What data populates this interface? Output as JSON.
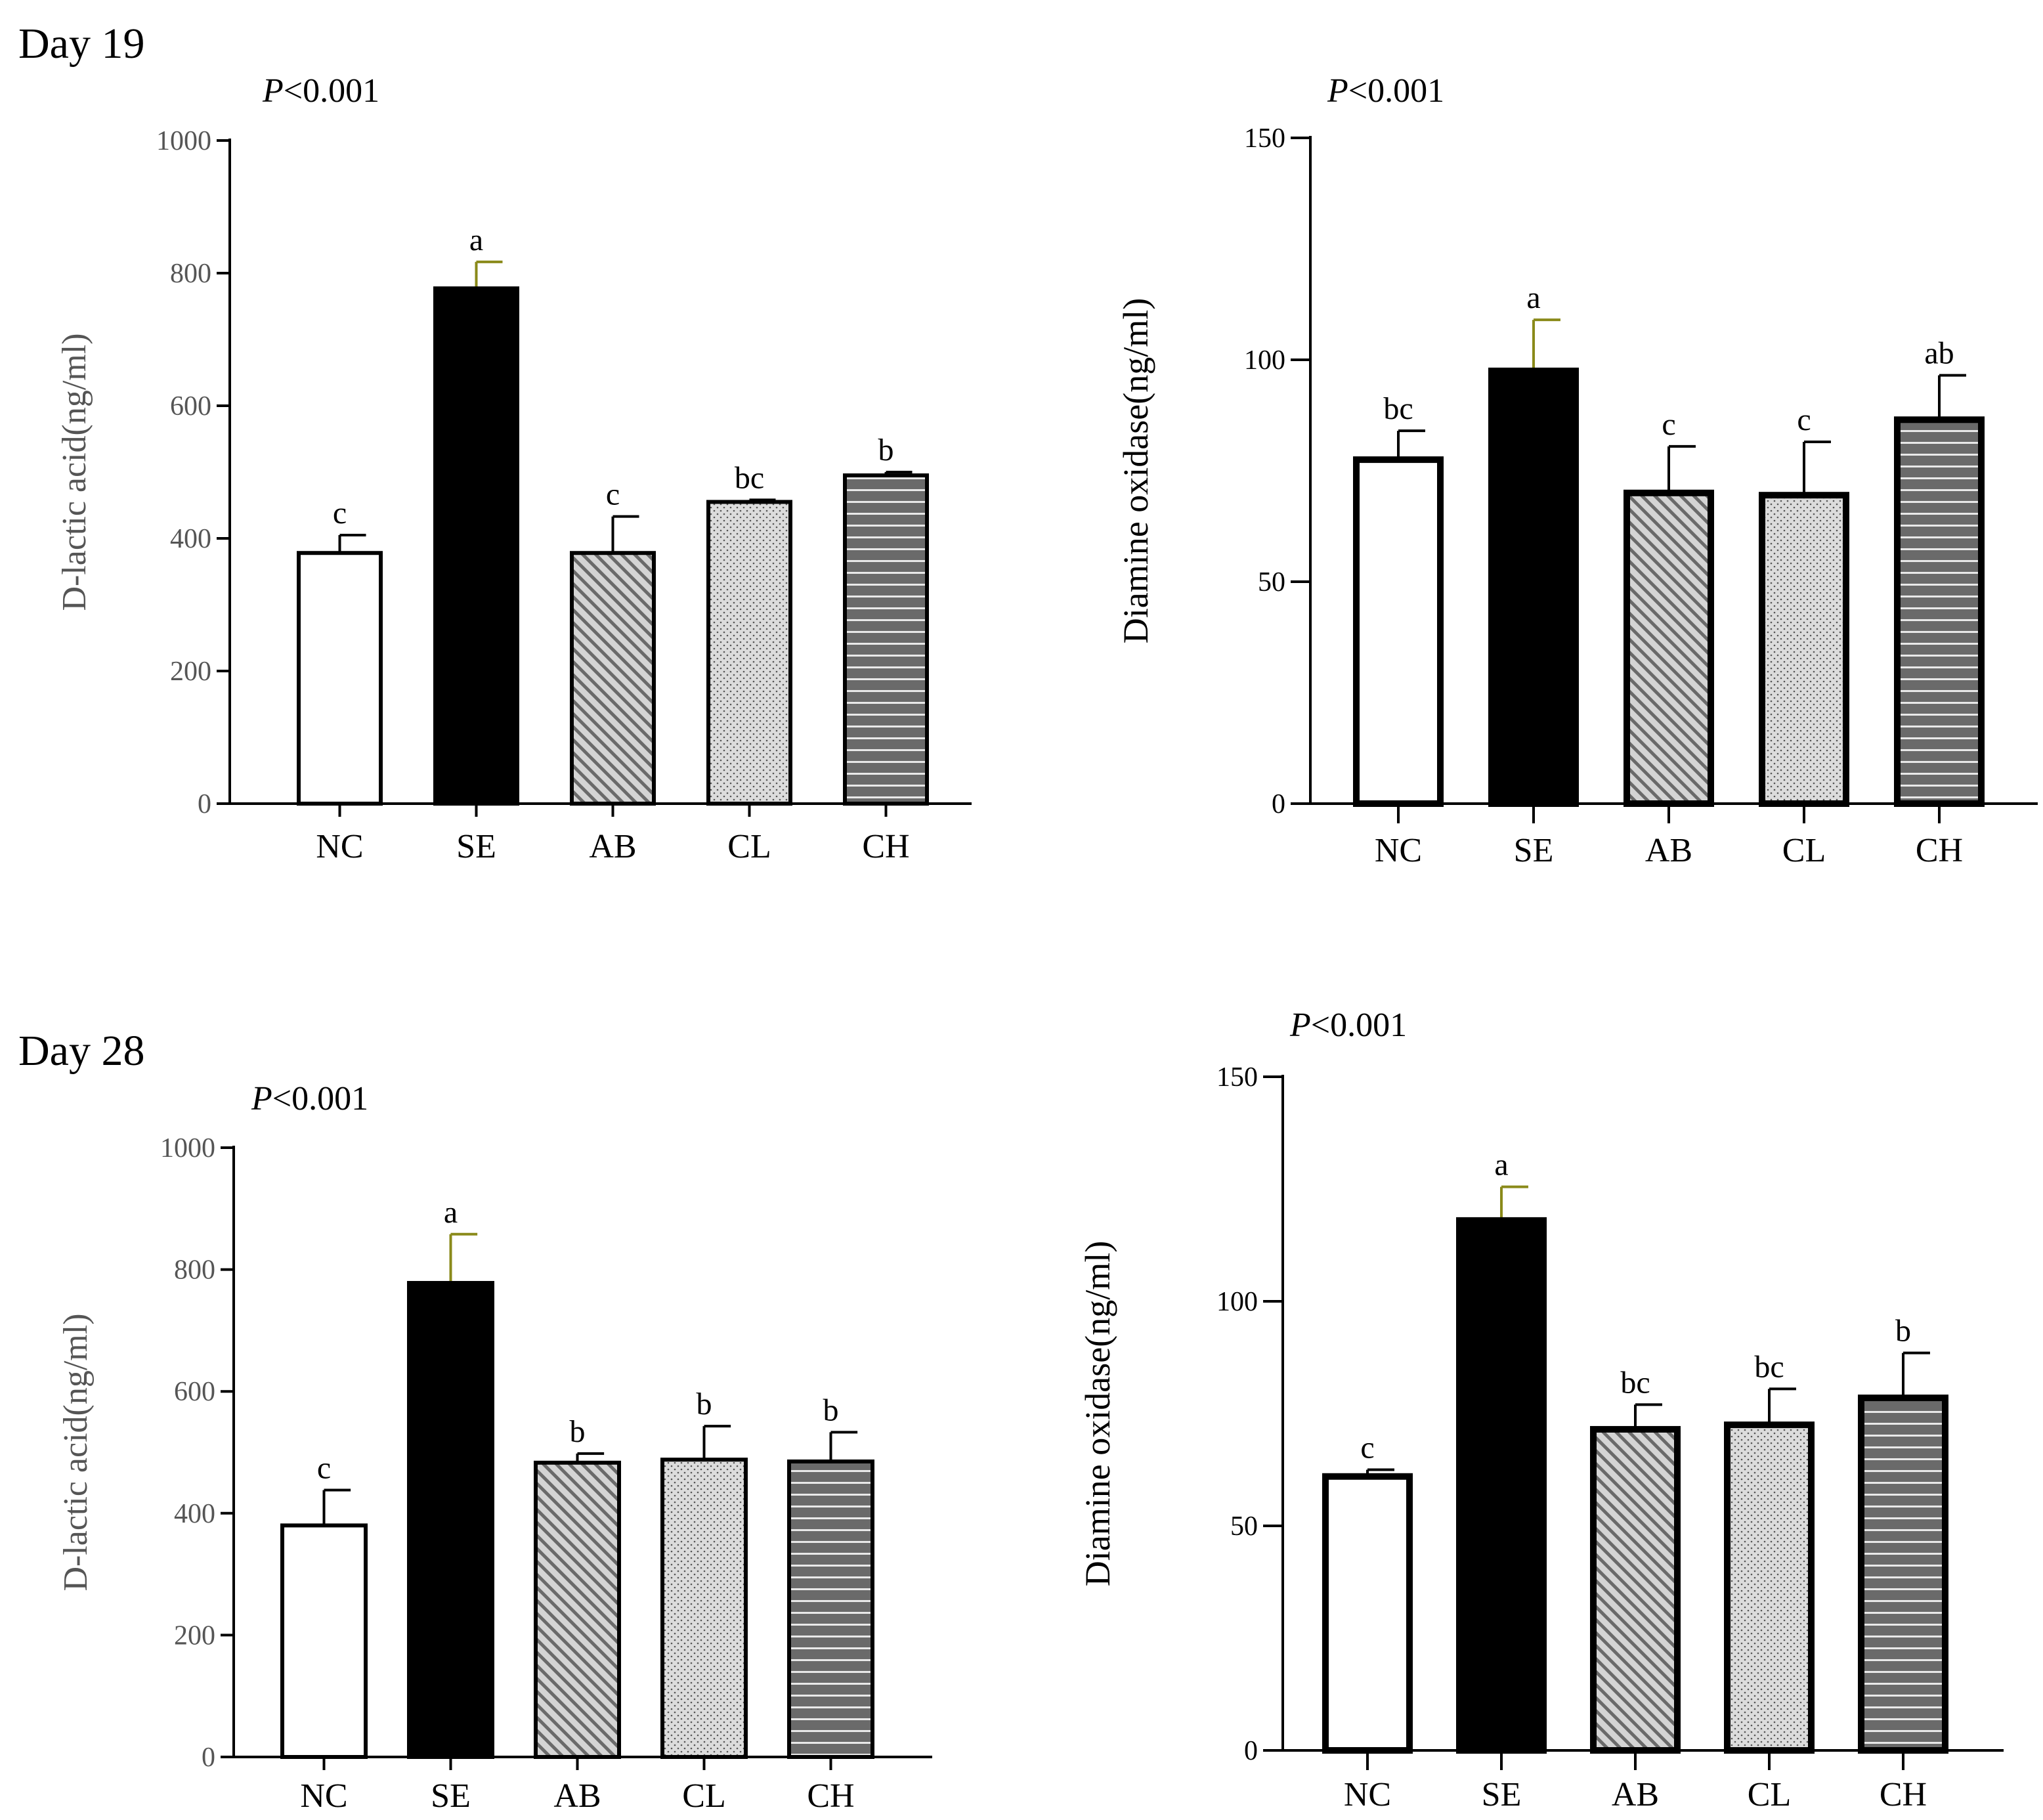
{
  "day_labels": [
    "Day 19",
    "Day 28"
  ],
  "colors": {
    "axis": "#000000",
    "dlac_axis_text": "#555555",
    "dao_axis_text": "#000000",
    "se_error_bar": "#8a8a1a",
    "fill_nc": "#ffffff",
    "fill_se": "#000000",
    "fill_ab": "#cfcfcf",
    "fill_cl": "#dadada",
    "fill_ch": "#6e6e6e"
  },
  "chart_data": [
    {
      "id": "d19-dlac",
      "day": "Day 19",
      "type": "bar",
      "title": "",
      "p_prefix": "P",
      "p_suffix": "<0.001",
      "xlabel": "",
      "ylabel": "D-lactic acid(ng/ml)",
      "ylim": [
        0,
        1000
      ],
      "yticks": [
        0,
        200,
        400,
        600,
        800,
        1000
      ],
      "categories": [
        "NC",
        "SE",
        "AB",
        "CL",
        "CH"
      ],
      "values": [
        378,
        777,
        378,
        455,
        495
      ],
      "errors": [
        27,
        40,
        55,
        3,
        5
      ],
      "letters": [
        "c",
        "a",
        "c",
        "bc",
        "b"
      ]
    },
    {
      "id": "d19-dao",
      "day": "Day 19",
      "type": "bar",
      "title": "",
      "p_prefix": "P",
      "p_suffix": "<0.001",
      "xlabel": "",
      "ylabel": "Diamine oxidase(ng/ml)",
      "ylim": [
        0,
        150
      ],
      "yticks": [
        0,
        50,
        100,
        150
      ],
      "categories": [
        "NC",
        "SE",
        "AB",
        "CL",
        "CH"
      ],
      "values": [
        77.5,
        97.5,
        70,
        69.5,
        86.5
      ],
      "errors": [
        6.5,
        11.5,
        10.5,
        12,
        10
      ],
      "letters": [
        "bc",
        "a",
        "c",
        "c",
        "ab"
      ]
    },
    {
      "id": "d28-dlac",
      "day": "Day 28",
      "type": "bar",
      "title": "",
      "p_prefix": "P",
      "p_suffix": "<0.001",
      "xlabel": "",
      "ylabel": "D-lactic acid(ng/ml)",
      "ylim": [
        0,
        1000
      ],
      "yticks": [
        0,
        200,
        400,
        600,
        800,
        1000
      ],
      "categories": [
        "NC",
        "SE",
        "AB",
        "CL",
        "CH"
      ],
      "values": [
        380,
        778,
        483,
        488,
        485
      ],
      "errors": [
        58,
        80,
        15,
        55,
        48
      ],
      "letters": [
        "c",
        "a",
        "b",
        "b",
        "b"
      ]
    },
    {
      "id": "d28-dao",
      "day": "Day 28",
      "type": "bar",
      "title": "",
      "p_prefix": "P",
      "p_suffix": "<0.001",
      "xlabel": "",
      "ylabel": "Diamine oxidase(ng/ml)",
      "ylim": [
        0,
        150
      ],
      "yticks": [
        0,
        50,
        100,
        150
      ],
      "categories": [
        "NC",
        "SE",
        "AB",
        "CL",
        "CH"
      ],
      "values": [
        61,
        118,
        71.5,
        72.5,
        78.5
      ],
      "errors": [
        1.5,
        7.5,
        5.5,
        8,
        10
      ],
      "letters": [
        "c",
        "a",
        "bc",
        "bc",
        "b"
      ]
    }
  ]
}
